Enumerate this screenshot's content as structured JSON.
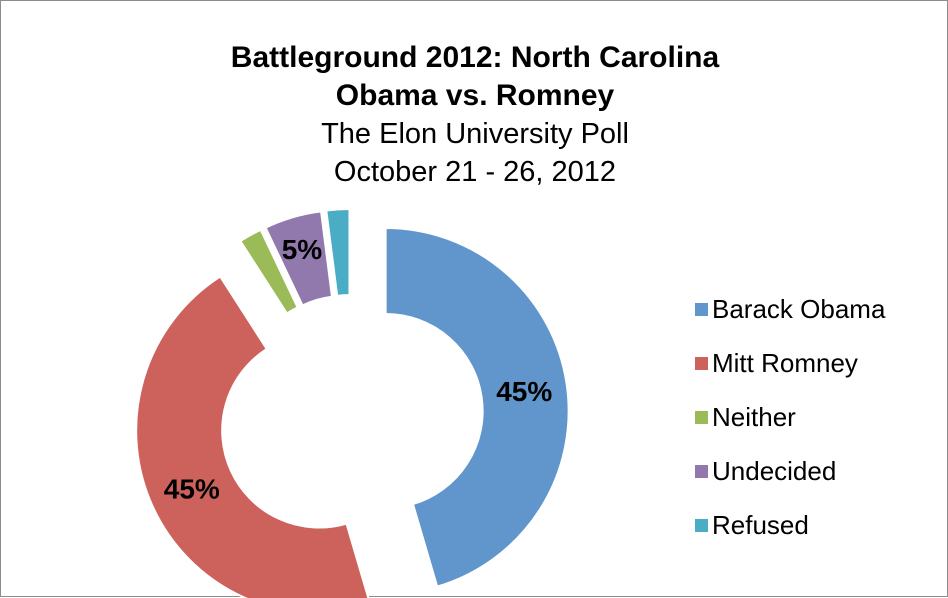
{
  "chart_data": {
    "type": "pie",
    "style": "doughnut-exploded",
    "title": "Battleground 2012: North Carolina",
    "title_line2": "Obama vs. Romney",
    "subtitle": "The Elon University Poll",
    "subtitle_line2": "October 21 - 26, 2012",
    "legend_position": "right",
    "slices": [
      {
        "label": "Barack Obama",
        "value": 45,
        "data_label": "45%",
        "color": "#6096cc"
      },
      {
        "label": "Mitt Romney",
        "value": 45,
        "data_label": "45%",
        "color": "#cd625d"
      },
      {
        "label": "Neither",
        "value": 2,
        "data_label": "",
        "color": "#9bbb59"
      },
      {
        "label": "Undecided",
        "value": 5,
        "data_label": "5%",
        "color": "#9178ad"
      },
      {
        "label": "Refused",
        "value": 2,
        "data_label": "",
        "color": "#4bacc6"
      }
    ]
  }
}
